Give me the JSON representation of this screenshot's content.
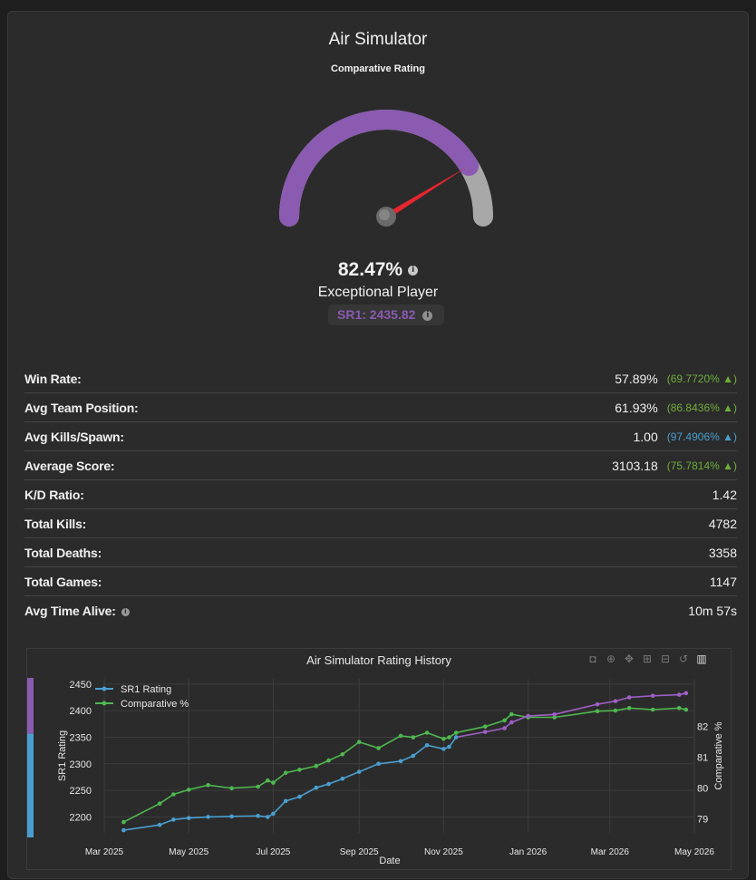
{
  "header": {
    "title": "Air Simulator",
    "subtitle": "Comparative Rating"
  },
  "gauge": {
    "value_percent": 82.47,
    "label": "82.47%",
    "player_class": "Exceptional Player",
    "sr_label": "SR1: 2435.82",
    "arc_color": "#8a5bb0",
    "track_color": "#a8a8a8",
    "needle_color": "#e5262f"
  },
  "stats": [
    {
      "label": "Win Rate:",
      "value": "57.89%",
      "delta": "(69.7720% ▲)",
      "delta_color": "#6fae3a"
    },
    {
      "label": "Avg Team Position:",
      "value": "61.93%",
      "delta": "(86.8436% ▲)",
      "delta_color": "#6fae3a"
    },
    {
      "label": "Avg Kills/Spawn:",
      "value": "1.00",
      "delta": "(97.4906% ▲)",
      "delta_color": "#4a9fd0"
    },
    {
      "label": "Average Score:",
      "value": "3103.18",
      "delta": "(75.7814% ▲)",
      "delta_color": "#6fae3a"
    },
    {
      "label": "K/D Ratio:",
      "value": "1.42",
      "delta": ""
    },
    {
      "label": "Total Kills:",
      "value": "4782",
      "delta": ""
    },
    {
      "label": "Total Deaths:",
      "value": "3358",
      "delta": ""
    },
    {
      "label": "Total Games:",
      "value": "1147",
      "delta": ""
    },
    {
      "label": "Avg Time Alive:",
      "value": "10m 57s",
      "delta": "",
      "info": true
    }
  ],
  "chart_data": {
    "type": "line",
    "title": "Air Simulator Rating History",
    "xlabel": "Date",
    "ylabel": "SR1 Rating",
    "y2label": "Comparative %",
    "x_ticks": [
      "Mar 2025",
      "May 2025",
      "Jul 2025",
      "Sep 2025",
      "Nov 2025",
      "Jan 2026",
      "Mar 2026",
      "May 2026"
    ],
    "ylim": [
      2170,
      2460
    ],
    "y_ticks": [
      2200,
      2250,
      2300,
      2350,
      2400,
      2450
    ],
    "y2lim": [
      78.55,
      83.55
    ],
    "y2_ticks": [
      79,
      80,
      81,
      82
    ],
    "legend_position": "top-left",
    "series": [
      {
        "name": "SR1 Rating",
        "axis": "y",
        "color": "#4a9fd0",
        "x": [
          "2025-03-15",
          "2025-04-10",
          "2025-04-20",
          "2025-05-01",
          "2025-05-15",
          "2025-06-01",
          "2025-06-20",
          "2025-06-27",
          "2025-07-01",
          "2025-07-10",
          "2025-07-20",
          "2025-08-01",
          "2025-08-10",
          "2025-08-20",
          "2025-09-01",
          "2025-09-15",
          "2025-10-01",
          "2025-10-10",
          "2025-10-20",
          "2025-11-01",
          "2025-11-05",
          "2025-11-10",
          "2025-12-01",
          "2025-12-15",
          "2025-12-20",
          "2026-01-01",
          "2026-01-20",
          "2026-02-20",
          "2026-03-05",
          "2026-03-15",
          "2026-04-01",
          "2026-04-20",
          "2026-04-25"
        ],
        "values": [
          2175,
          2185,
          2195,
          2198,
          2200,
          2201,
          2202,
          2200,
          2206,
          2230,
          2238,
          2255,
          2262,
          2272,
          2285,
          2300,
          2305,
          2315,
          2335,
          2328,
          2332,
          2350,
          2360,
          2367,
          2378,
          2390,
          2393,
          2412,
          2418,
          2425,
          2428,
          2430,
          2433
        ]
      },
      {
        "name": "Comparative %",
        "axis": "y2",
        "color": "#4fb84f",
        "x": [
          "2025-03-15",
          "2025-04-10",
          "2025-04-20",
          "2025-05-01",
          "2025-05-15",
          "2025-06-01",
          "2025-06-20",
          "2025-06-27",
          "2025-07-01",
          "2025-07-10",
          "2025-07-20",
          "2025-08-01",
          "2025-08-10",
          "2025-08-20",
          "2025-09-01",
          "2025-09-15",
          "2025-10-01",
          "2025-10-10",
          "2025-10-20",
          "2025-11-01",
          "2025-11-05",
          "2025-11-10",
          "2025-12-01",
          "2025-12-15",
          "2025-12-20",
          "2026-01-01",
          "2026-01-20",
          "2026-02-20",
          "2026-03-05",
          "2026-03-15",
          "2026-04-01",
          "2026-04-20",
          "2026-04-25"
        ],
        "values": [
          78.9,
          79.5,
          79.8,
          79.95,
          80.1,
          80.0,
          80.05,
          80.25,
          80.18,
          80.5,
          80.6,
          80.72,
          80.9,
          81.1,
          81.5,
          81.3,
          81.7,
          81.65,
          81.8,
          81.6,
          81.65,
          81.8,
          82.0,
          82.2,
          82.4,
          82.3,
          82.3,
          82.5,
          82.52,
          82.6,
          82.55,
          82.6,
          82.55
        ]
      }
    ],
    "bar_left": {
      "purple_fraction": 0.35,
      "blue_color": "#4a9fd0",
      "purple_color": "#8a5bb0"
    }
  }
}
